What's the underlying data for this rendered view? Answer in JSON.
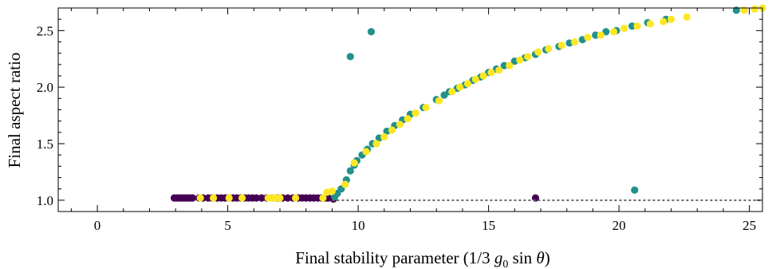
{
  "chart_data": {
    "type": "scatter",
    "title": "",
    "xlabel": "Final stability parameter (1/3 g0 sin θ)",
    "xlabel_parts": {
      "prefix": "Final stability parameter (1/3 ",
      "g": "g",
      "sub": "0",
      "mid": " sin ",
      "theta": "θ",
      "suffix": ")"
    },
    "ylabel": "Final aspect ratio",
    "xlim": [
      -1.5,
      25.5
    ],
    "ylim": [
      0.9,
      2.7
    ],
    "xticks": [
      0,
      5,
      10,
      15,
      20,
      25
    ],
    "yticks": [
      1.0,
      1.5,
      2.0,
      2.5
    ],
    "xtick_labels": [
      "0",
      "5",
      "10",
      "15",
      "20",
      "25"
    ],
    "ytick_labels": [
      "1.0",
      "1.5",
      "2.0",
      "2.5"
    ],
    "grid": false,
    "colors": {
      "purple": "#440154",
      "teal": "#21918c",
      "yellow": "#fde725",
      "reference": "#666666"
    },
    "reference_line": {
      "y": 1.0,
      "x": [
        9.0,
        25.5
      ],
      "style": "dotted"
    },
    "series": [
      {
        "color": "#440154",
        "points": [
          [
            2.95,
            1.02
          ],
          [
            3.05,
            1.02
          ],
          [
            3.15,
            1.02
          ],
          [
            3.25,
            1.02
          ],
          [
            3.35,
            1.02
          ],
          [
            3.45,
            1.02
          ],
          [
            3.55,
            1.02
          ],
          [
            3.65,
            1.02
          ],
          [
            3.9,
            1.02
          ],
          [
            4.05,
            1.02
          ],
          [
            4.25,
            1.02
          ],
          [
            4.4,
            1.02
          ],
          [
            4.6,
            1.02
          ],
          [
            4.75,
            1.02
          ],
          [
            4.9,
            1.02
          ],
          [
            5.05,
            1.02
          ],
          [
            5.2,
            1.02
          ],
          [
            5.35,
            1.02
          ],
          [
            5.5,
            1.02
          ],
          [
            5.65,
            1.02
          ],
          [
            5.8,
            1.02
          ],
          [
            5.95,
            1.02
          ],
          [
            6.1,
            1.02
          ],
          [
            6.3,
            1.02
          ],
          [
            6.5,
            1.02
          ],
          [
            6.7,
            1.02
          ],
          [
            6.9,
            1.02
          ],
          [
            7.1,
            1.02
          ],
          [
            7.3,
            1.02
          ],
          [
            7.5,
            1.02
          ],
          [
            7.7,
            1.02
          ],
          [
            7.85,
            1.02
          ],
          [
            8.0,
            1.02
          ],
          [
            8.15,
            1.02
          ],
          [
            8.3,
            1.02
          ],
          [
            8.45,
            1.02
          ],
          [
            8.6,
            1.02
          ],
          [
            8.75,
            1.02
          ],
          [
            8.85,
            1.02
          ],
          [
            9.05,
            1.01
          ],
          [
            16.8,
            1.02
          ]
        ]
      },
      {
        "color": "#21918c",
        "points": [
          [
            9.1,
            1.03
          ],
          [
            9.2,
            1.06
          ],
          [
            9.35,
            1.1
          ],
          [
            9.55,
            1.18
          ],
          [
            9.7,
            1.26
          ],
          [
            9.85,
            1.31
          ],
          [
            9.95,
            1.35
          ],
          [
            10.15,
            1.4
          ],
          [
            10.35,
            1.45
          ],
          [
            10.55,
            1.5
          ],
          [
            10.8,
            1.55
          ],
          [
            11.1,
            1.61
          ],
          [
            11.4,
            1.66
          ],
          [
            11.7,
            1.71
          ],
          [
            12.0,
            1.76
          ],
          [
            12.5,
            1.82
          ],
          [
            13.0,
            1.89
          ],
          [
            13.3,
            1.93
          ],
          [
            13.5,
            1.96
          ],
          [
            13.8,
            1.99
          ],
          [
            14.1,
            2.02
          ],
          [
            14.4,
            2.06
          ],
          [
            14.7,
            2.09
          ],
          [
            15.0,
            2.13
          ],
          [
            15.3,
            2.16
          ],
          [
            15.6,
            2.19
          ],
          [
            16.0,
            2.23
          ],
          [
            16.4,
            2.26
          ],
          [
            16.8,
            2.29
          ],
          [
            17.2,
            2.33
          ],
          [
            17.7,
            2.36
          ],
          [
            18.1,
            2.39
          ],
          [
            18.6,
            2.42
          ],
          [
            19.1,
            2.46
          ],
          [
            19.5,
            2.49
          ],
          [
            19.9,
            2.5
          ],
          [
            20.5,
            2.54
          ],
          [
            21.1,
            2.57
          ],
          [
            21.8,
            2.6
          ],
          [
            9.7,
            2.27
          ],
          [
            10.5,
            2.49
          ],
          [
            20.6,
            1.09
          ],
          [
            24.5,
            2.68
          ]
        ]
      },
      {
        "color": "#fde725",
        "points": [
          [
            3.95,
            1.02
          ],
          [
            4.45,
            1.02
          ],
          [
            5.05,
            1.02
          ],
          [
            5.55,
            1.02
          ],
          [
            6.55,
            1.02
          ],
          [
            6.7,
            1.02
          ],
          [
            6.85,
            1.02
          ],
          [
            7.0,
            1.02
          ],
          [
            7.6,
            1.02
          ],
          [
            8.65,
            1.02
          ],
          [
            8.8,
            1.07
          ],
          [
            9.0,
            1.08
          ],
          [
            9.5,
            1.14
          ],
          [
            9.85,
            1.33
          ],
          [
            10.3,
            1.43
          ],
          [
            10.7,
            1.5
          ],
          [
            11.0,
            1.56
          ],
          [
            11.3,
            1.62
          ],
          [
            11.6,
            1.67
          ],
          [
            11.9,
            1.72
          ],
          [
            12.2,
            1.77
          ],
          [
            12.6,
            1.82
          ],
          [
            13.1,
            1.88
          ],
          [
            13.6,
            1.96
          ],
          [
            13.9,
            2.0
          ],
          [
            14.2,
            2.03
          ],
          [
            14.5,
            2.07
          ],
          [
            14.8,
            2.1
          ],
          [
            15.1,
            2.13
          ],
          [
            15.4,
            2.15
          ],
          [
            15.8,
            2.19
          ],
          [
            16.2,
            2.24
          ],
          [
            16.5,
            2.27
          ],
          [
            16.9,
            2.31
          ],
          [
            17.3,
            2.34
          ],
          [
            17.8,
            2.37
          ],
          [
            18.3,
            2.4
          ],
          [
            18.8,
            2.44
          ],
          [
            19.3,
            2.46
          ],
          [
            19.8,
            2.49
          ],
          [
            20.2,
            2.52
          ],
          [
            20.7,
            2.54
          ],
          [
            21.2,
            2.56
          ],
          [
            21.7,
            2.58
          ],
          [
            22.0,
            2.6
          ],
          [
            22.6,
            2.62
          ],
          [
            24.8,
            2.68
          ],
          [
            25.2,
            2.69
          ],
          [
            25.5,
            2.7
          ]
        ]
      }
    ]
  }
}
